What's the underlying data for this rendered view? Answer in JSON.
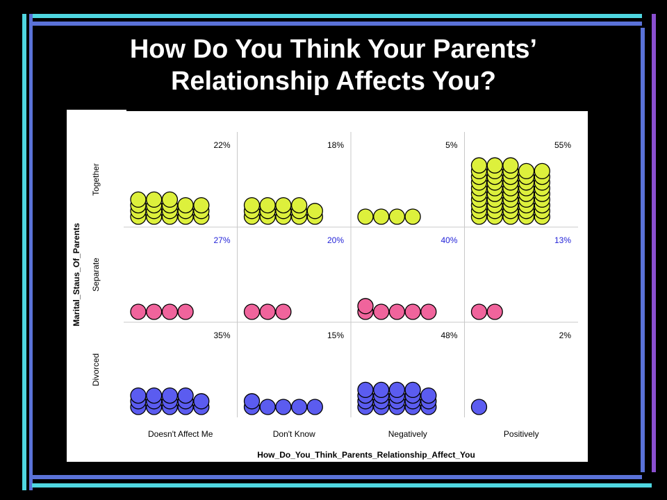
{
  "slide": {
    "title_line1": "How Do You Think Your Parents’",
    "title_line2": "Relationship Affects You?"
  },
  "colors": {
    "background": "#000000",
    "frame_cyan": "#4fd6e0",
    "frame_blue": "#5a72d8",
    "frame_purple": "#8a4fd0",
    "together": "#ddf03c",
    "separate": "#f0649c",
    "divorced": "#5b5cf0",
    "separate_pct_text": "#2323d8"
  },
  "chart_data": {
    "type": "scatter",
    "subtype": "stacked-dot-matrix",
    "title": "",
    "xlabel": "How_Do_You_Think_Parents_Relationship_Affect_You",
    "ylabel": "Marital_Staus_Of_Parents",
    "categories": [
      "Doesn't Affect Me",
      "Don't Know",
      "Negatively",
      "Positively"
    ],
    "rows": [
      "Together",
      "Separate",
      "Divorced"
    ],
    "grid": true,
    "series": [
      {
        "name": "Together",
        "percent_labels": [
          "22%",
          "18%",
          "5%",
          "55%"
        ],
        "percents": [
          22,
          18,
          5,
          55
        ],
        "stack_heights": [
          [
            4,
            4,
            4,
            3,
            3
          ],
          [
            3,
            3,
            3,
            3,
            2
          ],
          [
            1,
            1,
            1,
            1
          ],
          [
            10,
            10,
            10,
            9,
            9
          ]
        ]
      },
      {
        "name": "Separate",
        "percent_labels": [
          "27%",
          "20%",
          "40%",
          "13%"
        ],
        "percents": [
          27,
          20,
          40,
          13
        ],
        "stack_heights": [
          [
            1,
            1,
            1,
            1
          ],
          [
            1,
            1,
            1
          ],
          [
            2,
            1,
            1,
            1,
            1
          ],
          [
            1,
            1
          ]
        ]
      },
      {
        "name": "Divorced",
        "percent_labels": [
          "35%",
          "15%",
          "48%",
          "2%"
        ],
        "percents": [
          35,
          15,
          48,
          2
        ],
        "stack_heights": [
          [
            3,
            3,
            3,
            3,
            2
          ],
          [
            2,
            1,
            1,
            1,
            1
          ],
          [
            4,
            4,
            4,
            4,
            3
          ],
          [
            1
          ]
        ]
      }
    ]
  }
}
